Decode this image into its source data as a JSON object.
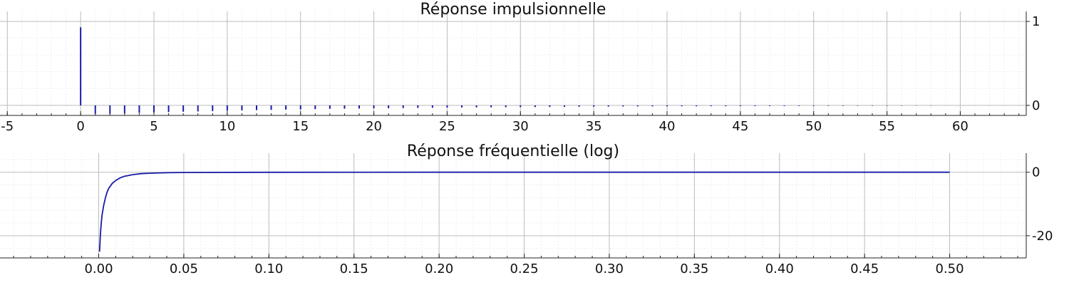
{
  "chart_data": [
    {
      "type": "bar",
      "title": "Réponse impulsionnelle",
      "xlim": [
        -5.5,
        64.5
      ],
      "ylim": [
        -0.12,
        1.12
      ],
      "x_ticks": [
        -5,
        0,
        5,
        10,
        15,
        20,
        25,
        30,
        35,
        40,
        45,
        50,
        55,
        60
      ],
      "x_tick_labels": [
        "-5",
        "0",
        "5",
        "10",
        "15",
        "20",
        "25",
        "30",
        "35",
        "40",
        "45",
        "50",
        "55",
        "60"
      ],
      "y_ticks": [
        0,
        1
      ],
      "y_tick_labels": [
        "0",
        "1"
      ],
      "y_axis_side": "right",
      "grid": true,
      "minor_grid": true,
      "series_color": "#1a1aa8",
      "series": [
        {
          "x": [
            0,
            1,
            2,
            3,
            4,
            5,
            6,
            7,
            8,
            9,
            10,
            11,
            12,
            13,
            14,
            15,
            16,
            17,
            18,
            19,
            20,
            21,
            22,
            23,
            24,
            25,
            26,
            27,
            28,
            29,
            30,
            31,
            32,
            33,
            34,
            35,
            36,
            37,
            38,
            39,
            40,
            41,
            42,
            43,
            44,
            45,
            46,
            47,
            48,
            49,
            50,
            51,
            52,
            53,
            54,
            55,
            56,
            57,
            58
          ],
          "y": [
            0.93,
            -0.1,
            -0.1,
            -0.095,
            -0.09,
            -0.085,
            -0.08,
            -0.076,
            -0.072,
            -0.068,
            -0.064,
            -0.06,
            -0.057,
            -0.054,
            -0.051,
            -0.048,
            -0.045,
            -0.042,
            -0.04,
            -0.038,
            -0.036,
            -0.034,
            -0.032,
            -0.03,
            -0.028,
            -0.026,
            -0.025,
            -0.024,
            -0.023,
            -0.022,
            -0.021,
            -0.02,
            -0.019,
            -0.018,
            -0.017,
            -0.016,
            -0.015,
            -0.014,
            -0.013,
            -0.012,
            -0.012,
            -0.011,
            -0.011,
            -0.01,
            -0.01,
            -0.009,
            -0.009,
            -0.008,
            -0.008,
            -0.007,
            -0.007,
            -0.006,
            -0.006,
            -0.005,
            -0.005,
            -0.004,
            -0.004,
            -0.003,
            -0.003
          ]
        }
      ]
    },
    {
      "type": "line",
      "title": "Réponse fréquentielle (log)",
      "xlim": [
        -0.058,
        0.545
      ],
      "ylim": [
        -27,
        6
      ],
      "x_ticks": [
        0,
        0.05,
        0.1,
        0.15,
        0.2,
        0.25,
        0.3,
        0.35,
        0.4,
        0.45,
        0.5
      ],
      "x_tick_labels": [
        "0.00",
        "0.05",
        "0.10",
        "0.15",
        "0.20",
        "0.25",
        "0.30",
        "0.35",
        "0.40",
        "0.45",
        "0.50"
      ],
      "y_ticks": [
        0,
        -20
      ],
      "y_tick_labels": [
        "0",
        "-20"
      ],
      "y_axis_side": "right",
      "grid": true,
      "minor_grid": true,
      "series_color": "#1a1aa8",
      "series": [
        {
          "x": [
            0.0005,
            0.001,
            0.0015,
            0.002,
            0.003,
            0.004,
            0.005,
            0.006,
            0.008,
            0.01,
            0.0125,
            0.015,
            0.02,
            0.025,
            0.03,
            0.04,
            0.05,
            0.1,
            0.2,
            0.3,
            0.4,
            0.5
          ],
          "y": [
            -25,
            -19.5,
            -16,
            -13.3,
            -10.2,
            -7.9,
            -6.2,
            -5,
            -3.5,
            -2.6,
            -1.8,
            -1.3,
            -0.75,
            -0.45,
            -0.3,
            -0.15,
            -0.08,
            -0.02,
            0,
            0,
            0,
            0
          ]
        }
      ]
    }
  ]
}
